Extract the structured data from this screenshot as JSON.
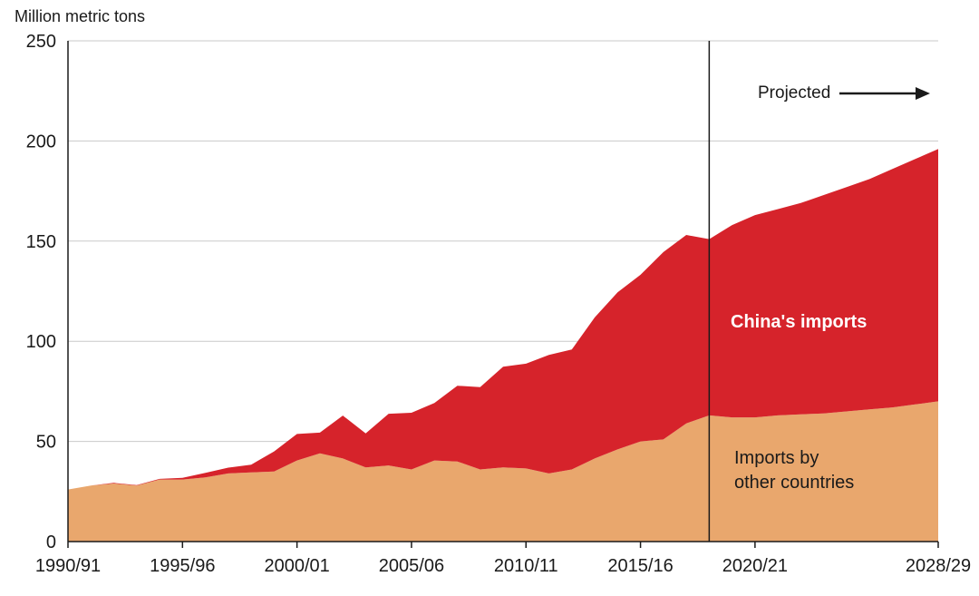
{
  "title": "Million metric tons",
  "projected_label": "Projected",
  "series_labels": {
    "china": "China's imports",
    "other_line1": "Imports by",
    "other_line2": "other countries"
  },
  "colors": {
    "china_area": "#d6232b",
    "other_area": "#e9a76d",
    "axis": "#1a1a1a",
    "gridline": "#c9c9c9",
    "projection_line": "#1a1a1a"
  },
  "chart_data": {
    "type": "area",
    "stacked": true,
    "title": "Million metric tons",
    "xlabel": "",
    "ylabel": "Million metric tons",
    "ylim": [
      0,
      250
    ],
    "yticks": [
      0,
      50,
      100,
      150,
      200,
      250
    ],
    "grid": "horizontal",
    "legend": "direct-labels",
    "projection_start_category": "2018/19",
    "annotations": [
      "Projected",
      "China's imports",
      "Imports by other countries"
    ],
    "xtick_labels": [
      "1990/91",
      "1995/96",
      "2000/01",
      "2005/06",
      "2010/11",
      "2015/16",
      "2020/21",
      "2028/29"
    ],
    "categories": [
      "1990/91",
      "1991/92",
      "1992/93",
      "1993/94",
      "1994/95",
      "1995/96",
      "1996/97",
      "1997/98",
      "1998/99",
      "1999/00",
      "2000/01",
      "2001/02",
      "2002/03",
      "2003/04",
      "2004/05",
      "2005/06",
      "2006/07",
      "2007/08",
      "2008/09",
      "2009/10",
      "2010/11",
      "2011/12",
      "2012/13",
      "2013/14",
      "2014/15",
      "2015/16",
      "2016/17",
      "2017/18",
      "2018/19",
      "2019/20",
      "2020/21",
      "2021/22",
      "2022/23",
      "2023/24",
      "2024/25",
      "2025/26",
      "2026/27",
      "2027/28",
      "2028/29"
    ],
    "series": [
      {
        "name": "Imports by other countries",
        "values": [
          26,
          28,
          29,
          28,
          31,
          31,
          32,
          34,
          34.5,
          35,
          40.5,
          44,
          41.5,
          37,
          38,
          36,
          40.5,
          40,
          36,
          37,
          36.5,
          34,
          36,
          41.5,
          46,
          50,
          51,
          59,
          63,
          62,
          62,
          63,
          63.5,
          64,
          65,
          66,
          67,
          68.5,
          70
        ]
      },
      {
        "name": "China's imports",
        "values": [
          0,
          0,
          0.3,
          0.2,
          0.3,
          0.8,
          2.3,
          2.9,
          3.9,
          10,
          13.2,
          10.4,
          21.4,
          17,
          25.8,
          28.3,
          28.7,
          37.8,
          41.1,
          50.3,
          52.3,
          59.2,
          59.9,
          70.4,
          78.4,
          83.2,
          93.5,
          94.1,
          88,
          96,
          101,
          103,
          105.5,
          109,
          112,
          115,
          119,
          122.5,
          126
        ]
      }
    ]
  }
}
